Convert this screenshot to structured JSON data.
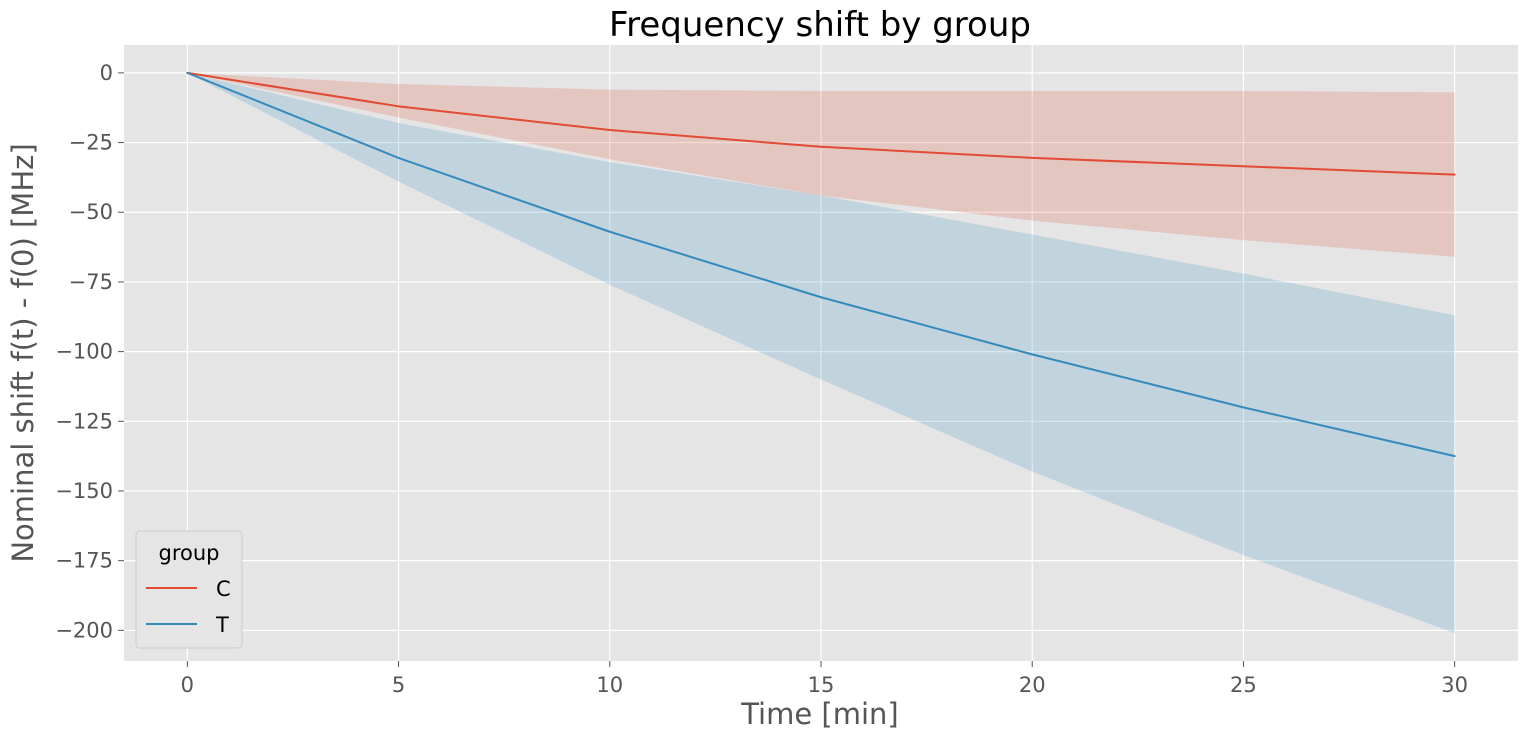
{
  "chart_data": {
    "type": "line",
    "title": "Frequency shift by group",
    "xlabel": "Time [min]",
    "ylabel": "Nominal shift f(t) - f(0) [MHz]",
    "xlim": [
      -1.5,
      31.5
    ],
    "ylim": [
      -211,
      10
    ],
    "x_ticks": [
      0,
      5,
      10,
      15,
      20,
      25,
      30
    ],
    "y_ticks": [
      0,
      -25,
      -50,
      -75,
      -100,
      -125,
      -150,
      -175,
      -200
    ],
    "y_tick_labels": [
      "0",
      "−25",
      "−50",
      "−75",
      "−100",
      "−125",
      "−150",
      "−175",
      "−200"
    ],
    "grid": true,
    "background": "#e5e5e5",
    "legend": {
      "title": "group",
      "position": "lower-left"
    },
    "x": [
      0,
      5,
      10,
      15,
      20,
      25,
      30
    ],
    "series": [
      {
        "name": "C",
        "color": "#e24a33",
        "values": [
          0,
          -12,
          -20.5,
          -26.5,
          -30.5,
          -33.5,
          -36.5
        ],
        "lower": [
          0,
          -16,
          -31,
          -44,
          -53,
          -60,
          -66
        ],
        "upper": [
          0,
          -4,
          -6,
          -6.5,
          -6.5,
          -6.5,
          -7
        ]
      },
      {
        "name": "T",
        "color": "#348abd",
        "values": [
          0,
          -30.5,
          -57,
          -80.5,
          -101,
          -120,
          -137.5
        ],
        "lower": [
          0,
          -39,
          -76,
          -110,
          -143,
          -173,
          -201
        ],
        "upper": [
          0,
          -18,
          -32,
          -44,
          -58,
          -72,
          -87
        ]
      }
    ]
  }
}
